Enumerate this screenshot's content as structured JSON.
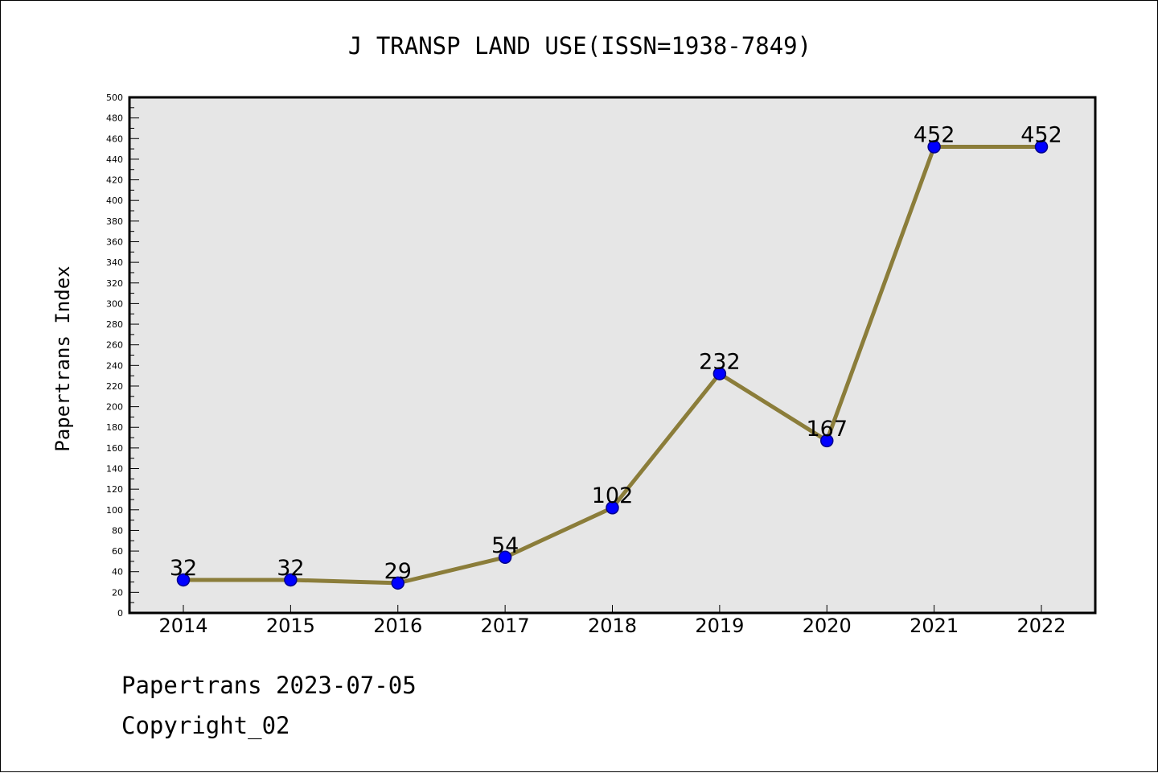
{
  "chart_data": {
    "type": "line",
    "title": "J TRANSP LAND USE(ISSN=1938-7849)",
    "xlabel": "",
    "ylabel": "Papertrans Index",
    "categories": [
      "2014",
      "2015",
      "2016",
      "2017",
      "2018",
      "2019",
      "2020",
      "2021",
      "2022"
    ],
    "series": [
      {
        "values": [
          32,
          32,
          29,
          54,
          102,
          232,
          167,
          452,
          452
        ]
      }
    ],
    "data_labels": [
      "32",
      "32",
      "29",
      "54",
      "102",
      "232",
      "167",
      "452",
      "452"
    ],
    "ylim": [
      0,
      500
    ],
    "yticks": [
      0,
      20,
      40,
      60,
      80,
      100,
      120,
      140,
      160,
      180,
      200,
      220,
      240,
      260,
      280,
      300,
      320,
      340,
      360,
      380,
      400,
      420,
      440,
      460,
      480,
      500
    ],
    "ytick_labels": [
      "0",
      "20",
      "40",
      "60",
      "80",
      "100",
      "120",
      "140",
      "160",
      "180",
      "200",
      "220",
      "240",
      "260",
      "280",
      "300",
      "320",
      "340",
      "360",
      "380",
      "400",
      "420",
      "440",
      "460",
      "480",
      "500"
    ],
    "grid": false,
    "legend": "none",
    "colors": {
      "line": "#8b7d3a",
      "marker_fill": "#0000ff",
      "marker_edge": "#00008b",
      "plot_background": "#e6e6e6"
    }
  },
  "footer": {
    "line1": "Papertrans 2023-07-05",
    "line2": "Copyright_02"
  }
}
